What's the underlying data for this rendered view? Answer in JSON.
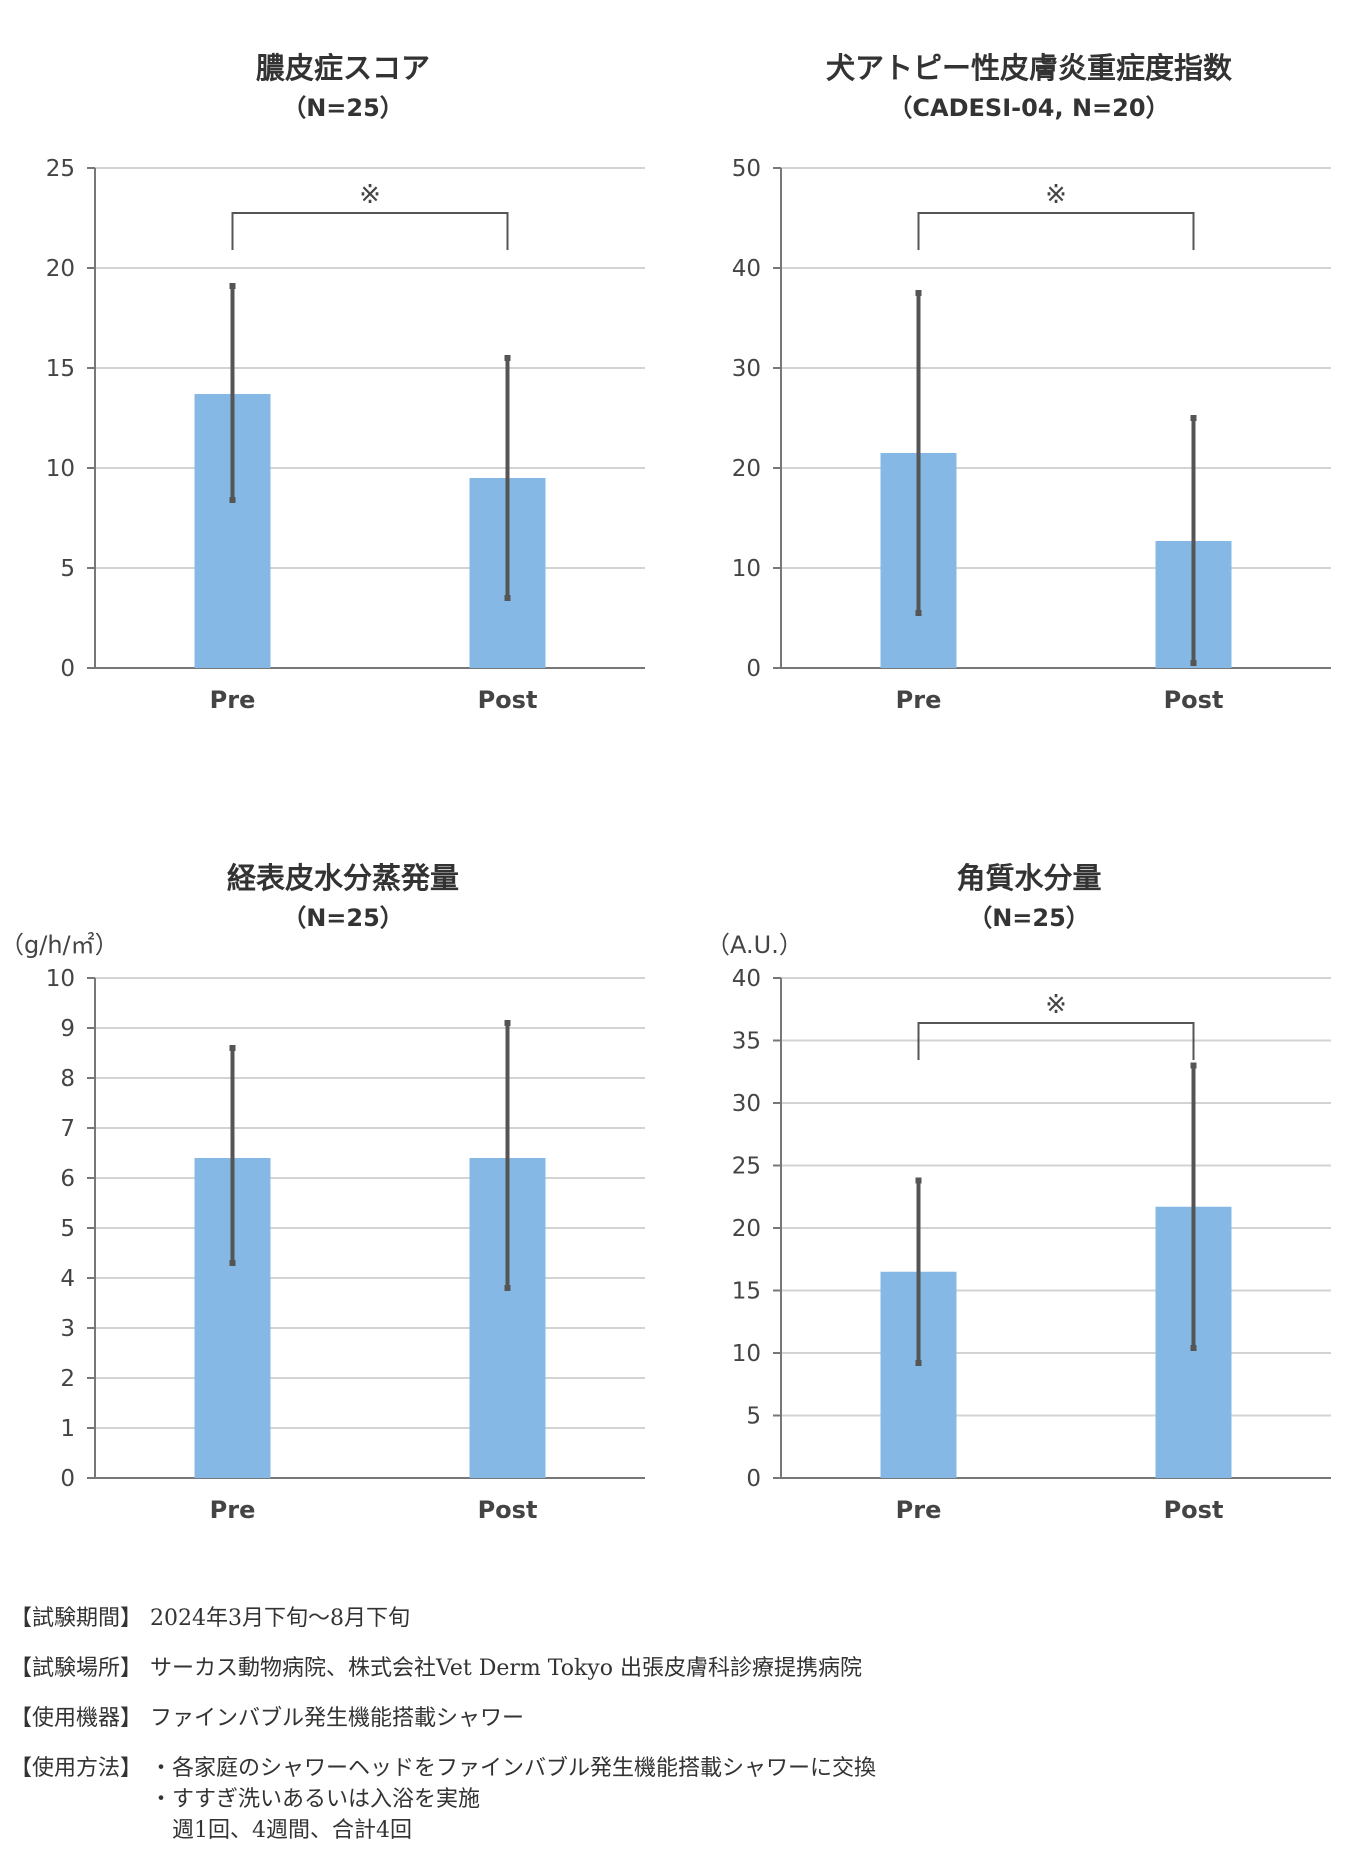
{
  "chart_data": [
    {
      "type": "bar",
      "title": "膿皮症スコア",
      "subtitle": "（N=25）",
      "unit_label": "",
      "categories": [
        "Pre",
        "Post"
      ],
      "values": [
        13.7,
        9.5
      ],
      "error_bars": [
        [
          8.4,
          19.1
        ],
        [
          3.5,
          15.5
        ]
      ],
      "ylim": [
        0,
        25
      ],
      "yticks": [
        0,
        5,
        10,
        15,
        20,
        25
      ],
      "significance_mark": "※",
      "grid": true
    },
    {
      "type": "bar",
      "title": "犬アトピー性皮膚炎重症度指数",
      "subtitle": "（CADESI-04, N=20）",
      "unit_label": "",
      "categories": [
        "Pre",
        "Post"
      ],
      "values": [
        21.5,
        12.7
      ],
      "error_bars": [
        [
          5.5,
          37.5
        ],
        [
          0.5,
          25.0
        ]
      ],
      "ylim": [
        0,
        50
      ],
      "yticks": [
        0,
        10,
        20,
        30,
        40,
        50
      ],
      "significance_mark": "※",
      "grid": true
    },
    {
      "type": "bar",
      "title": "経表皮水分蒸発量",
      "subtitle": "（N=25）",
      "unit_label": "（g/h/㎡）",
      "categories": [
        "Pre",
        "Post"
      ],
      "values": [
        6.4,
        6.4
      ],
      "error_bars": [
        [
          4.3,
          8.6
        ],
        [
          3.8,
          9.1
        ]
      ],
      "ylim": [
        0,
        10
      ],
      "yticks": [
        0,
        1,
        2,
        3,
        4,
        5,
        6,
        7,
        8,
        9,
        10
      ],
      "significance_mark": "",
      "grid": true
    },
    {
      "type": "bar",
      "title": "角質水分量",
      "subtitle": "（N=25）",
      "unit_label": "（A.U.）",
      "categories": [
        "Pre",
        "Post"
      ],
      "values": [
        16.5,
        21.7
      ],
      "error_bars": [
        [
          9.2,
          23.8
        ],
        [
          10.4,
          33.0
        ]
      ],
      "ylim": [
        0,
        40
      ],
      "yticks": [
        0,
        5,
        10,
        15,
        20,
        25,
        30,
        35,
        40
      ],
      "significance_mark": "※",
      "grid": true
    }
  ],
  "colors": {
    "bar": "#85b8e5",
    "error": "#555555",
    "grid": "#d3d3d3",
    "axis": "#777777",
    "text": "#444444"
  },
  "footer": {
    "period_label": "【試験期間】",
    "period_value": "2024年3月下旬〜8月下旬",
    "place_label": "【試験場所】",
    "place_value": "サーカス動物病院、株式会社Vet Derm Tokyo 出張皮膚科診療提携病院",
    "device_label": "【使用機器】",
    "device_value": "ファインバブル発生機能搭載シャワー",
    "method_label": "【使用方法】",
    "method_line1": "・各家庭のシャワーヘッドをファインバブル発生機能搭載シャワーに交換",
    "method_line2": "・すすぎ洗いあるいは入浴を実施",
    "method_line3": "　週1回、4週間、合計4回"
  }
}
